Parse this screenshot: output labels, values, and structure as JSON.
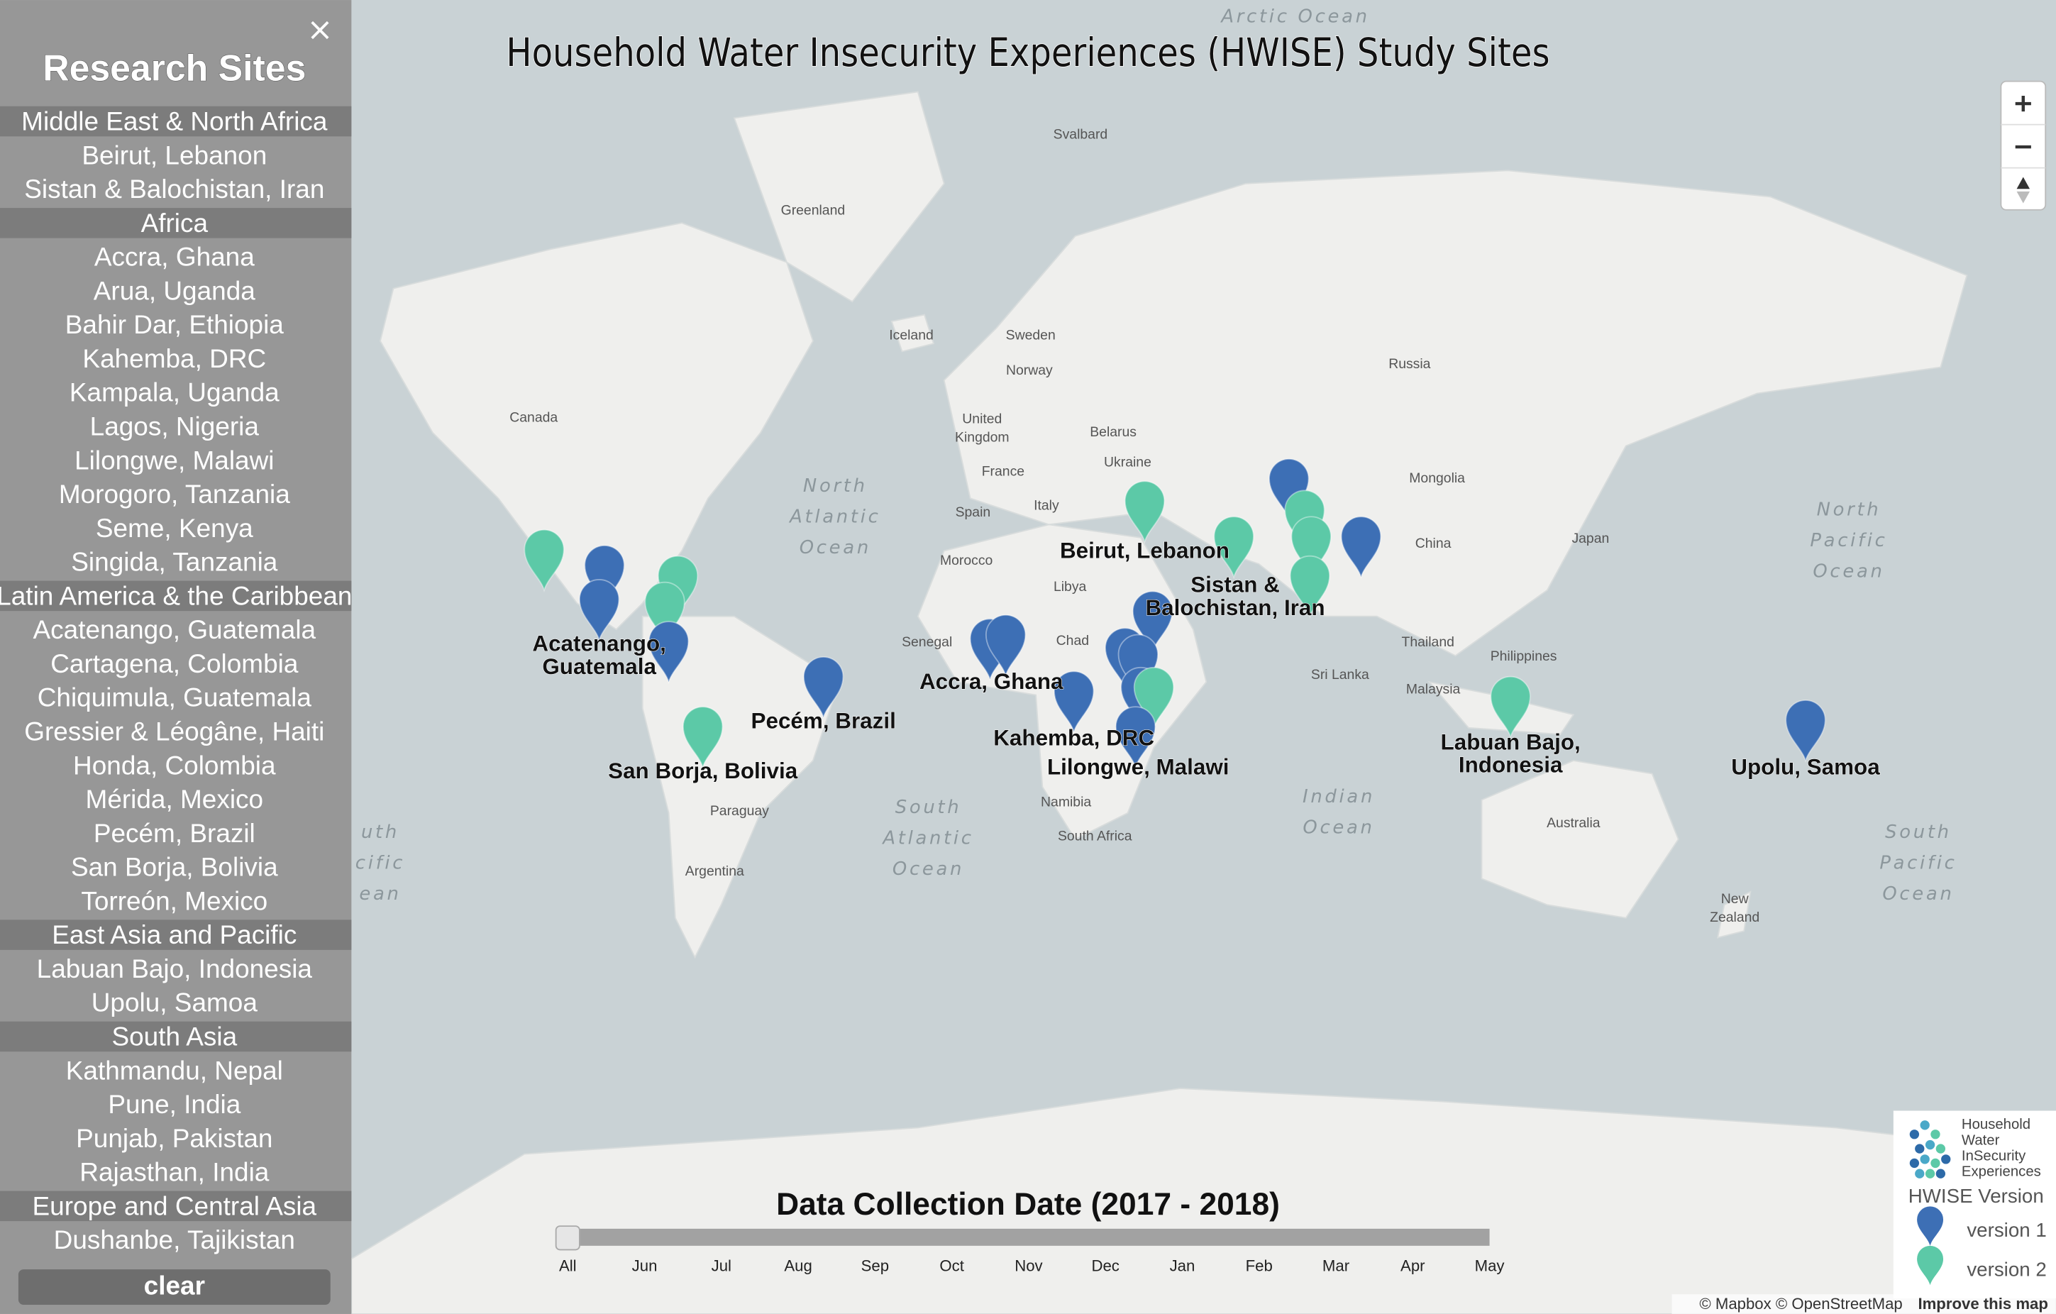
{
  "sidebar": {
    "title": "Research Sites",
    "close": "×",
    "groups": [
      {
        "name": "Middle East & North Africa",
        "sites": [
          "Beirut, Lebanon",
          "Sistan & Balochistan, Iran"
        ]
      },
      {
        "name": "Africa",
        "sites": [
          "Accra, Ghana",
          "Arua, Uganda",
          "Bahir Dar, Ethiopia",
          "Kahemba, DRC",
          "Kampala, Uganda",
          "Lagos, Nigeria",
          "Lilongwe, Malawi",
          "Morogoro, Tanzania",
          "Seme, Kenya",
          "Singida, Tanzania"
        ]
      },
      {
        "name": "Latin America & the Caribbean",
        "sites": [
          "Acatenango, Guatemala",
          "Cartagena, Colombia",
          "Chiquimula, Guatemala",
          "Gressier & Léogâne, Haiti",
          "Honda, Colombia",
          "Mérida, Mexico",
          "Pecém, Brazil",
          "San Borja, Bolivia",
          "Torreón, Mexico"
        ]
      },
      {
        "name": "East Asia and Pacific",
        "sites": [
          "Labuan Bajo, Indonesia",
          "Upolu, Samoa"
        ]
      },
      {
        "name": "South Asia",
        "sites": [
          "Kathmandu, Nepal",
          "Pune, India",
          "Punjab, Pakistan",
          "Rajasthan, India"
        ]
      },
      {
        "name": "Europe and Central Asia",
        "sites": [
          "Dushanbe, Tajikistan"
        ]
      }
    ],
    "clear": "clear"
  },
  "map": {
    "title": "Household Water Insecurity Experiences (HWISE) Study Sites",
    "labels": [
      [
        "Arctic Ocean"
      ],
      [
        "Svalbard"
      ],
      [
        "Greenland"
      ],
      [
        "Iceland"
      ],
      [
        "Sweden"
      ],
      [
        "Norway"
      ],
      [
        "Canada"
      ],
      [
        "Russia"
      ],
      [
        "United",
        "Kingdom"
      ],
      [
        "Belarus"
      ],
      [
        "France"
      ],
      [
        "Ukraine"
      ],
      [
        "Spain"
      ],
      [
        "Italy"
      ],
      [
        "Mongolia"
      ],
      [
        "North",
        "Atlantic",
        "Ocean"
      ],
      [
        "North",
        "Pacific",
        "Ocean"
      ],
      [
        "Morocco"
      ],
      [
        "Libya"
      ],
      [
        "China"
      ],
      [
        "Japan"
      ],
      [
        "Senegal"
      ],
      [
        "Chad"
      ],
      [
        "Thailand"
      ],
      [
        "Philippines"
      ],
      [
        "Malaysia"
      ],
      [
        "Sri Lanka"
      ],
      [
        "South",
        "Atlantic",
        "Ocean"
      ],
      [
        "Indian",
        "Ocean"
      ],
      [
        "Namibia"
      ],
      [
        "Paraguay"
      ],
      [
        "South Africa"
      ],
      [
        "Australia"
      ],
      [
        "Argentina"
      ],
      [
        "New",
        "Zealand"
      ],
      [
        "South",
        "Pacific",
        "Ocean"
      ],
      [
        "uth",
        "cific",
        "ean"
      ]
    ],
    "site_labels": [
      [
        "Beirut, Lebanon"
      ],
      [
        "Sistan &",
        "Balochistan, Iran"
      ],
      [
        "Acatenango,",
        "Guatemala"
      ],
      [
        "Accra, Ghana"
      ],
      [
        "Pecém, Brazil"
      ],
      [
        "San Borja, Bolivia"
      ],
      [
        "Kahemba, DRC"
      ],
      [
        "Lilongwe, Malawi"
      ],
      [
        "Labuan Bajo,",
        "Indonesia"
      ],
      [
        "Upolu, Samoa"
      ]
    ],
    "attribution": "© Mapbox © OpenStreetMap",
    "improve": "Improve this map"
  },
  "slider": {
    "title": "Data Collection Date (2017 - 2018)",
    "ticks": [
      "All",
      "Jun",
      "Jul",
      "Aug",
      "Sep",
      "Oct",
      "Nov",
      "Dec",
      "Jan",
      "Feb",
      "Mar",
      "Apr",
      "May"
    ]
  },
  "legend": {
    "logo": [
      "Household",
      "Water",
      "InSecurity",
      "Experiences"
    ],
    "title": "HWISE Version",
    "items": [
      {
        "name": "version 1",
        "color": "#3d6fb5"
      },
      {
        "name": "version 2",
        "color": "#5cc9a7"
      }
    ]
  }
}
